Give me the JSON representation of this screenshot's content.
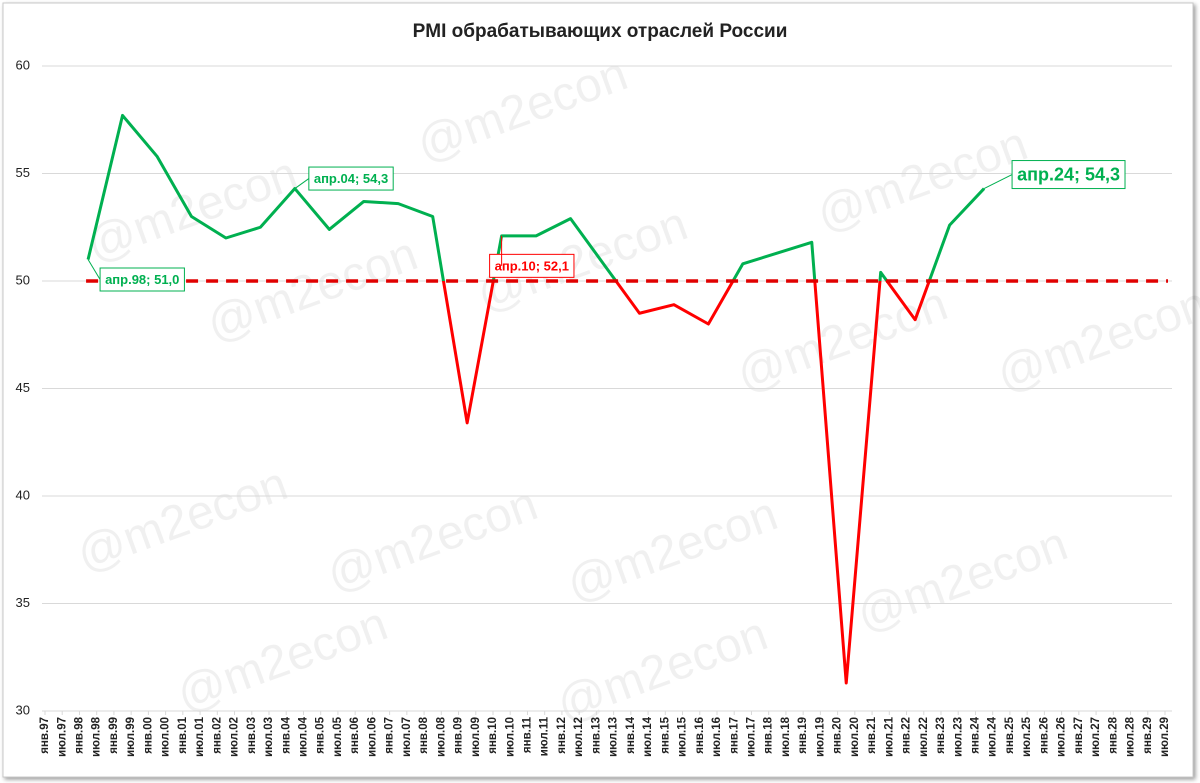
{
  "chart_data": {
    "type": "line",
    "title": "PMI обрабатывающих отраслей России",
    "watermark": "@m2econ",
    "x": [
      15,
      27,
      39,
      51,
      63,
      75,
      87,
      99,
      111,
      123,
      135,
      147,
      159,
      171,
      183,
      195,
      207,
      219,
      231,
      243,
      255,
      267,
      279,
      291,
      303,
      315,
      327
    ],
    "series": [
      {
        "name": "PMI",
        "values": [
          51.0,
          57.7,
          55.8,
          53.0,
          52.0,
          52.5,
          54.3,
          52.4,
          53.7,
          53.6,
          53.0,
          43.4,
          52.1,
          52.1,
          52.9,
          50.7,
          48.5,
          48.9,
          48.0,
          50.8,
          51.3,
          51.8,
          31.3,
          50.4,
          48.2,
          52.6,
          54.3
        ]
      }
    ],
    "color_above": "#00b050",
    "color_below": "#ff0000",
    "threshold": {
      "value": 50,
      "color": "#e00000",
      "dashed": true
    },
    "ylim": [
      30,
      60
    ],
    "yticks": [
      30,
      35,
      40,
      45,
      50,
      55,
      60
    ],
    "grid": true,
    "xlim": [
      0,
      390
    ],
    "xticks": [
      {
        "value": 0,
        "label": "янв.97"
      },
      {
        "value": 6,
        "label": "июл.97"
      },
      {
        "value": 12,
        "label": "янв.98"
      },
      {
        "value": 18,
        "label": "июл.98"
      },
      {
        "value": 24,
        "label": "янв.99"
      },
      {
        "value": 30,
        "label": "июл.99"
      },
      {
        "value": 36,
        "label": "янв.00"
      },
      {
        "value": 42,
        "label": "июл.00"
      },
      {
        "value": 48,
        "label": "янв.01"
      },
      {
        "value": 54,
        "label": "июл.01"
      },
      {
        "value": 60,
        "label": "янв.02"
      },
      {
        "value": 66,
        "label": "июл.02"
      },
      {
        "value": 72,
        "label": "янв.03"
      },
      {
        "value": 78,
        "label": "июл.03"
      },
      {
        "value": 84,
        "label": "янв.04"
      },
      {
        "value": 90,
        "label": "июл.04"
      },
      {
        "value": 96,
        "label": "янв.05"
      },
      {
        "value": 102,
        "label": "июл.05"
      },
      {
        "value": 108,
        "label": "янв.06"
      },
      {
        "value": 114,
        "label": "июл.06"
      },
      {
        "value": 120,
        "label": "янв.07"
      },
      {
        "value": 126,
        "label": "июл.07"
      },
      {
        "value": 132,
        "label": "янв.08"
      },
      {
        "value": 138,
        "label": "июл.08"
      },
      {
        "value": 144,
        "label": "янв.09"
      },
      {
        "value": 150,
        "label": "июл.09"
      },
      {
        "value": 156,
        "label": "янв.10"
      },
      {
        "value": 162,
        "label": "июл.10"
      },
      {
        "value": 168,
        "label": "янв.11"
      },
      {
        "value": 174,
        "label": "июл.11"
      },
      {
        "value": 180,
        "label": "янв.12"
      },
      {
        "value": 186,
        "label": "июл.12"
      },
      {
        "value": 192,
        "label": "янв.13"
      },
      {
        "value": 198,
        "label": "июл.13"
      },
      {
        "value": 204,
        "label": "янв.14"
      },
      {
        "value": 210,
        "label": "июл.14"
      },
      {
        "value": 216,
        "label": "янв.15"
      },
      {
        "value": 222,
        "label": "июл.15"
      },
      {
        "value": 228,
        "label": "янв.16"
      },
      {
        "value": 234,
        "label": "июл.16"
      },
      {
        "value": 240,
        "label": "янв.17"
      },
      {
        "value": 246,
        "label": "июл.17"
      },
      {
        "value": 252,
        "label": "янв.18"
      },
      {
        "value": 258,
        "label": "июл.18"
      },
      {
        "value": 264,
        "label": "янв.19"
      },
      {
        "value": 270,
        "label": "июл.19"
      },
      {
        "value": 276,
        "label": "янв.20"
      },
      {
        "value": 282,
        "label": "июл.20"
      },
      {
        "value": 288,
        "label": "янв.21"
      },
      {
        "value": 294,
        "label": "июл.21"
      },
      {
        "value": 300,
        "label": "янв.22"
      },
      {
        "value": 306,
        "label": "июл.22"
      },
      {
        "value": 312,
        "label": "янв.23"
      },
      {
        "value": 318,
        "label": "июл.23"
      },
      {
        "value": 324,
        "label": "янв.24"
      },
      {
        "value": 330,
        "label": "июл.24"
      },
      {
        "value": 336,
        "label": "янв.25"
      },
      {
        "value": 342,
        "label": "июл.25"
      },
      {
        "value": 348,
        "label": "янв.26"
      },
      {
        "value": 354,
        "label": "июл.26"
      },
      {
        "value": 360,
        "label": "янв.27"
      },
      {
        "value": 366,
        "label": "июл.27"
      },
      {
        "value": 372,
        "label": "янв.28"
      },
      {
        "value": 378,
        "label": "июл.28"
      },
      {
        "value": 384,
        "label": "янв.29"
      },
      {
        "value": 390,
        "label": "июл.29"
      }
    ],
    "annotations": [
      {
        "text": "апр.98; 51,0",
        "x": 15,
        "y": 51.0,
        "color": "#00b050"
      },
      {
        "text": "апр.04; 54,3",
        "x": 87,
        "y": 54.3,
        "color": "#00b050"
      },
      {
        "text": "апр.10; 52,1",
        "x": 159,
        "y": 52.1,
        "color": "#ff0000"
      },
      {
        "text": "апр.24; 54,3",
        "x": 327,
        "y": 54.3,
        "color": "#00b050"
      }
    ]
  }
}
